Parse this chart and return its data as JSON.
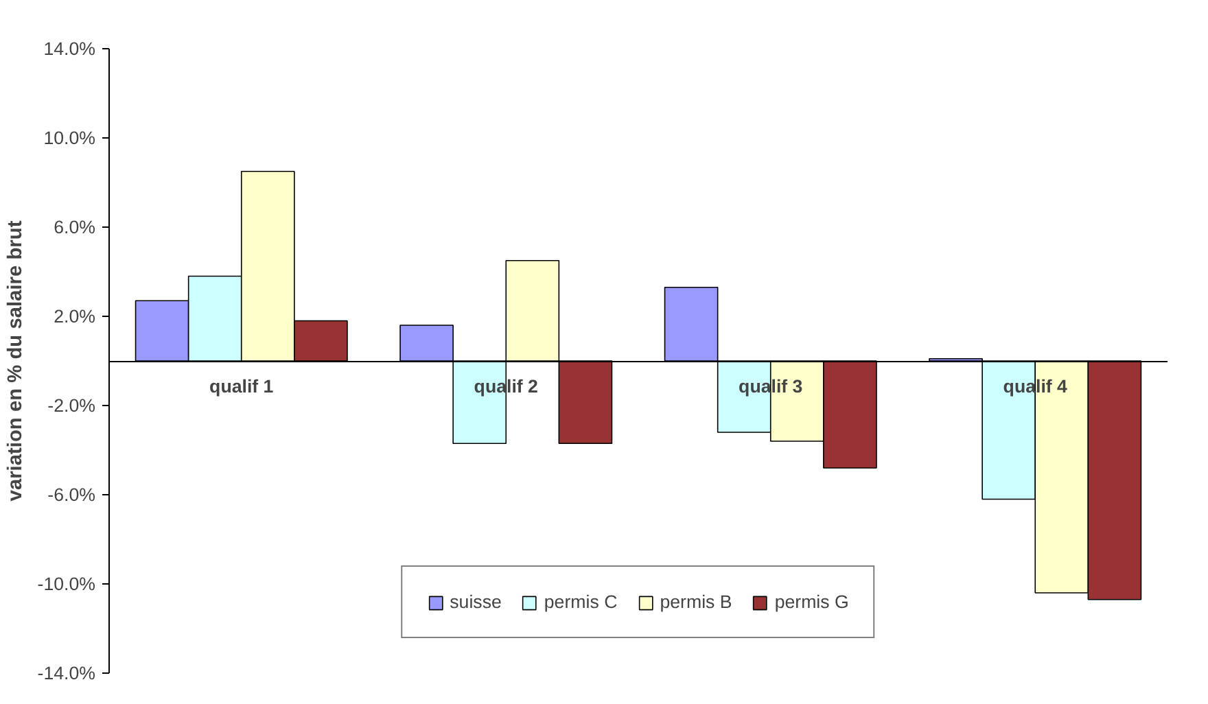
{
  "chart_data": {
    "type": "bar",
    "ylabel": "variation en % du salaire brut",
    "categories": [
      "qualif 1",
      "qualif 2",
      "qualif 3",
      "qualif 4"
    ],
    "series": [
      {
        "name": "suisse",
        "color": "#9999ff",
        "values": [
          2.7,
          1.6,
          3.3,
          0.1
        ]
      },
      {
        "name": "permis C",
        "color": "#ccffff",
        "values": [
          3.8,
          -3.7,
          -3.2,
          -6.2
        ]
      },
      {
        "name": "permis B",
        "color": "#ffffcc",
        "values": [
          8.5,
          4.5,
          -3.6,
          -10.4
        ]
      },
      {
        "name": "permis G",
        "color": "#993333",
        "values": [
          1.8,
          -3.7,
          -4.8,
          -10.7
        ]
      }
    ],
    "ylim": [
      -14,
      14
    ],
    "yticks": [
      {
        "value": -14,
        "label": "-14.0%"
      },
      {
        "value": -10,
        "label": "-10.0%"
      },
      {
        "value": -6,
        "label": "-6.0%"
      },
      {
        "value": -2,
        "label": "-2.0%"
      },
      {
        "value": 2,
        "label": "2.0%"
      },
      {
        "value": 6,
        "label": "6.0%"
      },
      {
        "value": 10,
        "label": "10.0%"
      },
      {
        "value": 14,
        "label": "14.0%"
      }
    ],
    "grid": false,
    "legend": "bottom"
  }
}
